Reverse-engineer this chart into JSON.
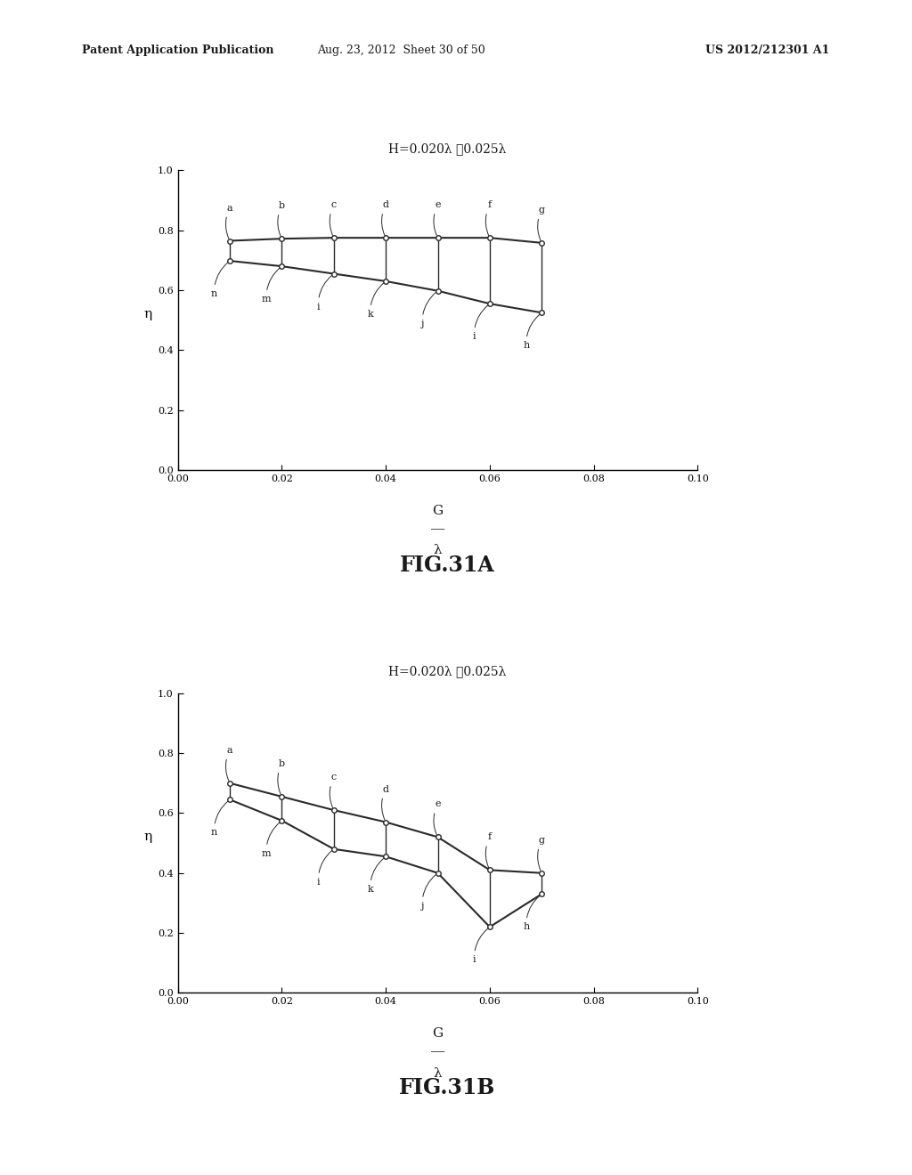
{
  "fig_title_A": "H=0.020λ ～0.025λ",
  "fig_title_B": "H=0.020λ ～0.025λ",
  "fig_label_A": "FIG.31A",
  "fig_label_B": "FIG.31B",
  "ylabel": "η",
  "xlim": [
    0.0,
    0.1
  ],
  "ylim": [
    0.0,
    1.0
  ],
  "xticks": [
    0.0,
    0.02,
    0.04,
    0.06,
    0.08,
    0.1
  ],
  "yticks": [
    0.0,
    0.2,
    0.4,
    0.6,
    0.8,
    1.0
  ],
  "chart_A": {
    "upper_x": [
      0.01,
      0.02,
      0.03,
      0.04,
      0.05,
      0.06,
      0.07
    ],
    "upper_y": [
      0.765,
      0.772,
      0.775,
      0.775,
      0.775,
      0.775,
      0.758
    ],
    "lower_x": [
      0.01,
      0.02,
      0.03,
      0.04,
      0.05,
      0.06,
      0.07
    ],
    "lower_y": [
      0.698,
      0.68,
      0.655,
      0.63,
      0.598,
      0.555,
      0.525
    ],
    "upper_labels": [
      "a",
      "b",
      "c",
      "d",
      "e",
      "f",
      "g"
    ],
    "lower_labels": [
      "n",
      "m",
      "i",
      "k",
      "j",
      "i",
      "h"
    ]
  },
  "chart_B": {
    "upper_x": [
      0.01,
      0.02,
      0.03,
      0.04,
      0.05,
      0.06,
      0.07
    ],
    "upper_y": [
      0.7,
      0.655,
      0.61,
      0.57,
      0.52,
      0.41,
      0.4
    ],
    "lower_x": [
      0.01,
      0.02,
      0.03,
      0.04,
      0.05,
      0.06,
      0.07
    ],
    "lower_y": [
      0.645,
      0.575,
      0.48,
      0.455,
      0.4,
      0.22,
      0.33
    ],
    "upper_labels": [
      "a",
      "b",
      "c",
      "d",
      "e",
      "f",
      "g"
    ],
    "lower_labels": [
      "n",
      "m",
      "i",
      "k",
      "j",
      "i",
      "h"
    ]
  },
  "line_color": "#2a2a2a",
  "marker_size": 4,
  "bg_color": "#ffffff",
  "text_color": "#1a1a1a",
  "header_left": "Patent Application Publication",
  "header_mid": "Aug. 23, 2012  Sheet 30 of 50",
  "header_right": "US 2012/212301 A1"
}
